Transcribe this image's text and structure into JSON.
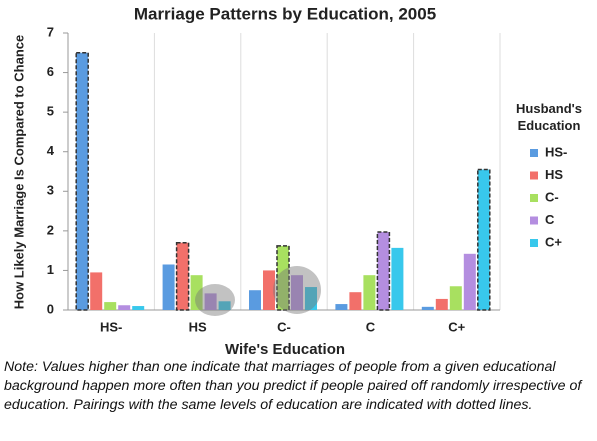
{
  "chart_data": {
    "type": "bar",
    "title": "Marriage Patterns by Education, 2005",
    "x_label": "Wife's Education",
    "y_label": "How Likely Marriage Is Compared to Chance",
    "legend_title": "Husband's Education",
    "categories": [
      "HS-",
      "HS",
      "C-",
      "C",
      "C+"
    ],
    "series": [
      {
        "name": "HS-",
        "color": "#5a9be0",
        "values": [
          6.5,
          1.15,
          0.5,
          0.15,
          0.08
        ]
      },
      {
        "name": "HS",
        "color": "#f2706a",
        "values": [
          0.95,
          1.7,
          1.0,
          0.45,
          0.28
        ]
      },
      {
        "name": "C-",
        "color": "#a8e060",
        "values": [
          0.2,
          0.88,
          1.62,
          0.88,
          0.6
        ]
      },
      {
        "name": "C",
        "color": "#b48ee0",
        "values": [
          0.12,
          0.42,
          0.88,
          1.97,
          1.42
        ]
      },
      {
        "name": "C+",
        "color": "#38c8ec",
        "values": [
          0.1,
          0.22,
          0.58,
          1.57,
          3.55
        ]
      }
    ],
    "ylim": [
      0,
      7
    ],
    "yticks": [
      0,
      1,
      2,
      3,
      4,
      5,
      6,
      7
    ],
    "legend": "right",
    "note": "Note: Values higher than one indicate that marriages of people from a given educational background happen more often than you predict if people paired off randomly irrespective of education. Pairings with the same levels of education are indicated with dotted lines."
  }
}
